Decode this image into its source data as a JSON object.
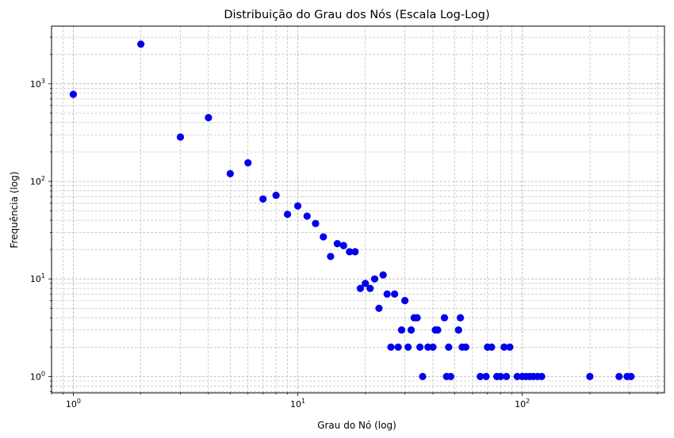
{
  "chart_data": {
    "type": "scatter",
    "title": "Distribuição do Grau dos Nós (Escala Log-Log)",
    "xlabel": "Grau do Nó (log)",
    "ylabel": "Frequência (log)",
    "x_scale": "log",
    "y_scale": "log",
    "xlim": [
      0.8,
      430
    ],
    "ylim": [
      0.68,
      3900
    ],
    "x_ticks": [
      {
        "base": "10",
        "exp": "0",
        "value": 1
      },
      {
        "base": "10",
        "exp": "1",
        "value": 10
      },
      {
        "base": "10",
        "exp": "2",
        "value": 100
      }
    ],
    "y_ticks": [
      {
        "base": "10",
        "exp": "0",
        "value": 1
      },
      {
        "base": "10",
        "exp": "1",
        "value": 10
      },
      {
        "base": "10",
        "exp": "2",
        "value": 100
      },
      {
        "base": "10",
        "exp": "3",
        "value": 1000
      }
    ],
    "grid": true,
    "marker_color": "#0000ee",
    "points": [
      [
        1,
        780
      ],
      [
        2,
        2550
      ],
      [
        3,
        285
      ],
      [
        4,
        450
      ],
      [
        5,
        120
      ],
      [
        6,
        155
      ],
      [
        7,
        66
      ],
      [
        8,
        72
      ],
      [
        9,
        46
      ],
      [
        10,
        56
      ],
      [
        11,
        44
      ],
      [
        12,
        37
      ],
      [
        13,
        27
      ],
      [
        14,
        17
      ],
      [
        15,
        23
      ],
      [
        16,
        22
      ],
      [
        17,
        19
      ],
      [
        18,
        19
      ],
      [
        19,
        8
      ],
      [
        20,
        9
      ],
      [
        21,
        8
      ],
      [
        22,
        10
      ],
      [
        23,
        5
      ],
      [
        24,
        11
      ],
      [
        25,
        7
      ],
      [
        26,
        2
      ],
      [
        27,
        7
      ],
      [
        28,
        2
      ],
      [
        29,
        3
      ],
      [
        30,
        6
      ],
      [
        31,
        2
      ],
      [
        32,
        3
      ],
      [
        33,
        4
      ],
      [
        34,
        4
      ],
      [
        35,
        2
      ],
      [
        36,
        1
      ],
      [
        38,
        2
      ],
      [
        40,
        2
      ],
      [
        41,
        3
      ],
      [
        42,
        3
      ],
      [
        45,
        4
      ],
      [
        46,
        1
      ],
      [
        47,
        2
      ],
      [
        48,
        1
      ],
      [
        52,
        3
      ],
      [
        53,
        4
      ],
      [
        54,
        2
      ],
      [
        56,
        2
      ],
      [
        65,
        1
      ],
      [
        69,
        1
      ],
      [
        70,
        2
      ],
      [
        73,
        2
      ],
      [
        77,
        1
      ],
      [
        80,
        1
      ],
      [
        83,
        2
      ],
      [
        85,
        1
      ],
      [
        88,
        2
      ],
      [
        95,
        1
      ],
      [
        100,
        1
      ],
      [
        104,
        1
      ],
      [
        108,
        1
      ],
      [
        112,
        1
      ],
      [
        117,
        1
      ],
      [
        122,
        1
      ],
      [
        200,
        1
      ],
      [
        270,
        1
      ],
      [
        293,
        1
      ],
      [
        305,
        1
      ]
    ]
  }
}
